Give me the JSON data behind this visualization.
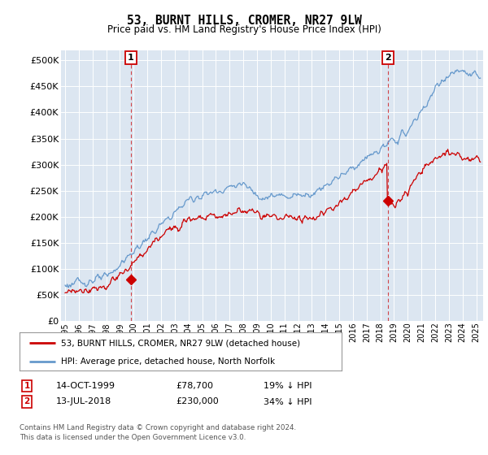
{
  "title": "53, BURNT HILLS, CROMER, NR27 9LW",
  "subtitle": "Price paid vs. HM Land Registry's House Price Index (HPI)",
  "ylim": [
    0,
    520000
  ],
  "yticks": [
    0,
    50000,
    100000,
    150000,
    200000,
    250000,
    300000,
    350000,
    400000,
    450000,
    500000
  ],
  "ytick_labels": [
    "£0",
    "£50K",
    "£100K",
    "£150K",
    "£200K",
    "£250K",
    "£300K",
    "£350K",
    "£400K",
    "£450K",
    "£500K"
  ],
  "xlim_start": 1994.7,
  "xlim_end": 2025.5,
  "background_color": "#dce6f1",
  "plot_bg_color": "#dce6f1",
  "red_color": "#cc0000",
  "blue_color": "#6699cc",
  "sale1_x": 1999.79,
  "sale1_y": 78700,
  "sale2_x": 2018.54,
  "sale2_y": 230000,
  "sale1_label": "14-OCT-1999",
  "sale1_price": "£78,700",
  "sale1_note": "19% ↓ HPI",
  "sale2_label": "13-JUL-2018",
  "sale2_price": "£230,000",
  "sale2_note": "34% ↓ HPI",
  "legend1": "53, BURNT HILLS, CROMER, NR27 9LW (detached house)",
  "legend2": "HPI: Average price, detached house, North Norfolk",
  "footer": "Contains HM Land Registry data © Crown copyright and database right 2024.\nThis data is licensed under the Open Government Licence v3.0."
}
